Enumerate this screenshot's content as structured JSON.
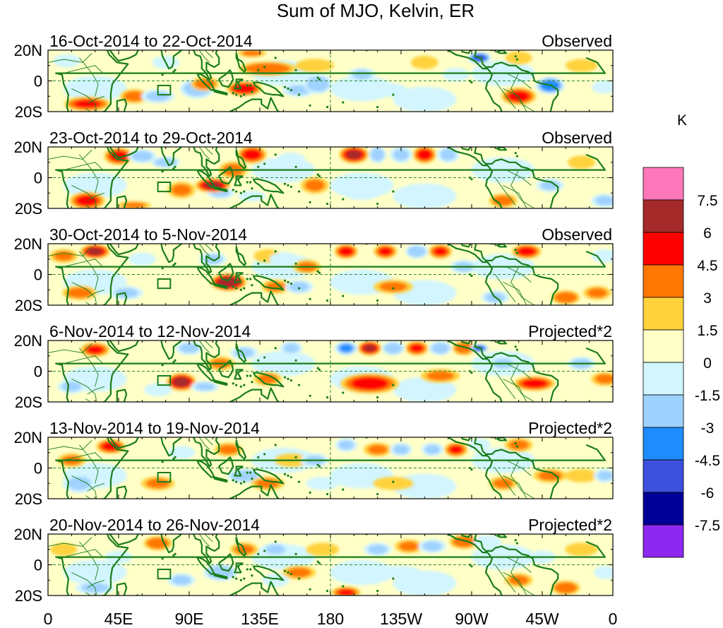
{
  "title": "Sum of MJO, Kelvin, ER",
  "units": "K",
  "colors": {
    "coast": "#1a7d1a",
    "dashed": "#2d8a3a"
  },
  "panels": [
    {
      "date_range": "16-Oct-2014 to 22-Oct-2014",
      "status": "Observed"
    },
    {
      "date_range": "23-Oct-2014 to 29-Oct-2014",
      "status": "Observed"
    },
    {
      "date_range": "30-Oct-2014 to 5-Nov-2014",
      "status": "Observed"
    },
    {
      "date_range": "6-Nov-2014 to 12-Nov-2014",
      "status": "Projected*2"
    },
    {
      "date_range": "13-Nov-2014 to 19-Nov-2014",
      "status": "Projected*2"
    },
    {
      "date_range": "20-Nov-2014 to 26-Nov-2014",
      "status": "Projected*2"
    }
  ],
  "lat_labels": [
    "20N",
    "0",
    "20S"
  ],
  "lon_labels": [
    "0",
    "45E",
    "90E",
    "135E",
    "180",
    "135W",
    "90W",
    "45W",
    "0"
  ],
  "colorbar": {
    "levels": [
      "7.5",
      "6",
      "4.5",
      "3",
      "1.5",
      "0",
      "-1.5",
      "-3",
      "-4.5",
      "-6",
      "-7.5"
    ],
    "colors": [
      "#ff77bb",
      "#a52a2a",
      "#ff0000",
      "#ff7700",
      "#ffd23c",
      "#ffffc8",
      "#d2f5ff",
      "#a0d2ff",
      "#1e8cff",
      "#3c50dc",
      "#000096",
      "#8c28f0"
    ]
  }
}
